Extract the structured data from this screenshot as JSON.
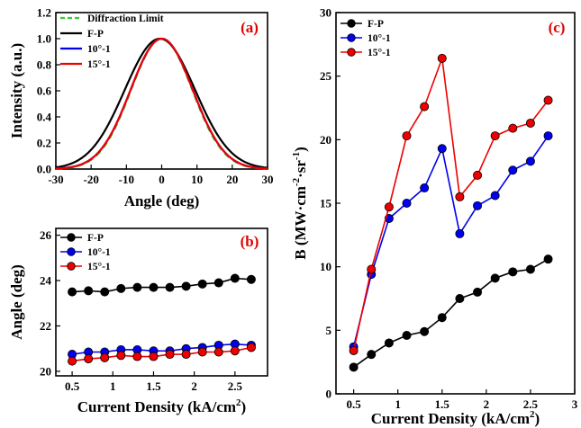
{
  "chart_data": [
    {
      "panel_label": "(a)",
      "type": "line",
      "xlabel": "Angle (deg)",
      "ylabel": "Intensity (a.u.)",
      "xlim": [
        -30,
        30
      ],
      "ylim": [
        0.0,
        1.2
      ],
      "xticks": [
        -30,
        -20,
        -10,
        0,
        10,
        20,
        30
      ],
      "yticks": [
        0.0,
        0.2,
        0.4,
        0.6,
        0.8,
        1.0,
        1.2
      ],
      "ytick_labels": [
        "0.0",
        "0.2",
        "0.4",
        "0.6",
        "0.8",
        "1.0",
        "1.2"
      ],
      "legend_position": "top-left",
      "series": [
        {
          "name": "Diffraction Limit",
          "color": "#33cc33",
          "dashed": true,
          "center": 0.0,
          "fwhm": 20.5,
          "x": [
            -30,
            -25,
            -20,
            -15,
            -10,
            -5,
            0,
            5,
            10,
            15,
            20,
            25,
            30
          ],
          "y": [
            0.0,
            0.01,
            0.05,
            0.17,
            0.44,
            0.81,
            1.0,
            0.81,
            0.44,
            0.17,
            0.05,
            0.01,
            0.0
          ]
        },
        {
          "name": "F-P",
          "color": "#000000",
          "dashed": false,
          "center": -0.5,
          "fwhm": 23.5,
          "x": [
            -30,
            -25,
            -20,
            -15,
            -10,
            -5,
            0,
            5,
            10,
            15,
            20,
            25,
            30
          ],
          "y": [
            0.0,
            0.02,
            0.09,
            0.26,
            0.54,
            0.86,
            0.99,
            0.79,
            0.47,
            0.2,
            0.06,
            0.01,
            0.0
          ]
        },
        {
          "name": "10°-1",
          "color": "#0000ee",
          "dashed": false,
          "center": 0.0,
          "fwhm": 20.8,
          "x": [
            -30,
            -25,
            -20,
            -15,
            -10,
            -5,
            0,
            5,
            10,
            15,
            20,
            25,
            30
          ],
          "y": [
            0.0,
            0.01,
            0.05,
            0.17,
            0.45,
            0.81,
            1.0,
            0.81,
            0.45,
            0.17,
            0.05,
            0.01,
            0.0
          ]
        },
        {
          "name": "15°-1",
          "color": "#ee0000",
          "dashed": false,
          "center": 0.0,
          "fwhm": 20.8,
          "x": [
            -30,
            -25,
            -20,
            -15,
            -10,
            -5,
            0,
            5,
            10,
            15,
            20,
            25,
            30
          ],
          "y": [
            0.0,
            0.01,
            0.05,
            0.17,
            0.45,
            0.81,
            1.0,
            0.81,
            0.45,
            0.17,
            0.05,
            0.01,
            0.0
          ]
        }
      ]
    },
    {
      "panel_label": "(b)",
      "type": "line",
      "xlabel": "Current Density (kA/cm",
      "xlabel_sup": "2",
      "xlabel_end": ")",
      "ylabel": "Angle (deg)",
      "xlim": [
        0.3,
        2.9
      ],
      "ylim": [
        19.8,
        26.3
      ],
      "xticks": [
        0.5,
        1.0,
        1.5,
        2.0,
        2.5
      ],
      "yticks": [
        20,
        22,
        24,
        26
      ],
      "legend_position": "top-left",
      "x": [
        0.5,
        0.7,
        0.9,
        1.1,
        1.3,
        1.5,
        1.7,
        1.9,
        2.1,
        2.3,
        2.5,
        2.7
      ],
      "series": [
        {
          "name": "F-P",
          "color": "#000000",
          "values": [
            23.5,
            23.55,
            23.5,
            23.65,
            23.7,
            23.7,
            23.7,
            23.75,
            23.85,
            23.9,
            24.1,
            24.05
          ]
        },
        {
          "name": "10°-1",
          "color": "#0000ee",
          "values": [
            20.75,
            20.85,
            20.85,
            20.95,
            20.95,
            20.9,
            20.9,
            21.0,
            21.05,
            21.15,
            21.2,
            21.15
          ]
        },
        {
          "name": "15°-1",
          "color": "#ee0000",
          "values": [
            20.45,
            20.55,
            20.6,
            20.7,
            20.65,
            20.65,
            20.75,
            20.75,
            20.85,
            20.85,
            20.9,
            21.05
          ]
        }
      ]
    },
    {
      "panel_label": "(c)",
      "type": "line",
      "xlabel": "Current Density (kA/cm",
      "xlabel_sup": "2",
      "xlabel_end": ")",
      "ylabel": "B (MW·cm-2·sr-1)",
      "ylabel_parts": [
        "B (MW·cm",
        "-2",
        "·sr",
        "-1",
        ")"
      ],
      "xlim": [
        0.3,
        3.0
      ],
      "ylim": [
        0,
        30
      ],
      "xticks": [
        0.5,
        1.0,
        1.5,
        2.0,
        2.5,
        3.0
      ],
      "yticks": [
        0,
        5,
        10,
        15,
        20,
        25,
        30
      ],
      "legend_position": "top-left",
      "x": [
        0.5,
        0.7,
        0.9,
        1.1,
        1.3,
        1.5,
        1.7,
        1.9,
        2.1,
        2.3,
        2.5,
        2.7
      ],
      "series": [
        {
          "name": "F-P",
          "color": "#000000",
          "values": [
            2.1,
            3.1,
            4.0,
            4.6,
            4.9,
            6.0,
            7.5,
            8.0,
            9.1,
            9.6,
            9.8,
            10.6
          ]
        },
        {
          "name": "10°-1",
          "color": "#0000ee",
          "values": [
            3.7,
            9.4,
            13.8,
            15.0,
            16.2,
            19.3,
            12.6,
            14.8,
            15.6,
            17.6,
            18.3,
            20.3
          ]
        },
        {
          "name": "15°-1",
          "color": "#ee0000",
          "values": [
            3.4,
            9.8,
            14.7,
            20.3,
            22.6,
            26.4,
            15.5,
            17.2,
            20.3,
            20.9,
            21.3,
            23.1
          ]
        }
      ]
    }
  ]
}
